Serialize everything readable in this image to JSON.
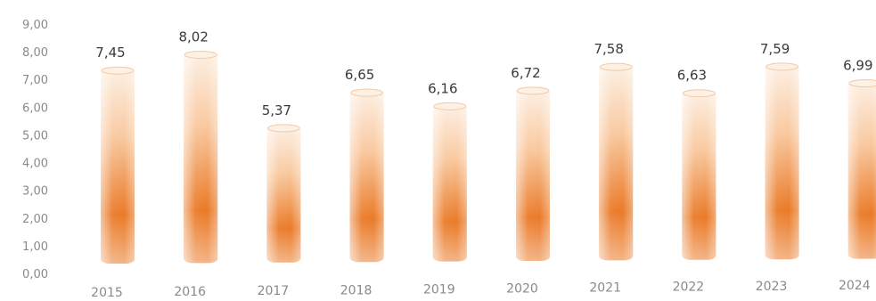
{
  "chart_data": {
    "type": "bar",
    "categories": [
      "2015",
      "2016",
      "2017",
      "2018",
      "2019",
      "2020",
      "2021",
      "2022",
      "2023",
      "2024"
    ],
    "values": [
      7.45,
      8.02,
      5.37,
      6.65,
      6.16,
      6.72,
      7.58,
      6.63,
      7.59,
      6.99
    ],
    "value_labels": [
      "7,45",
      "8,02",
      "5,37",
      "6,65",
      "6,16",
      "6,72",
      "7,58",
      "6,63",
      "7,59",
      "6,99"
    ],
    "yticks": [
      "0,00",
      "1,00",
      "2,00",
      "3,00",
      "4,00",
      "5,00",
      "6,00",
      "7,00",
      "8,00",
      "9,00"
    ],
    "ylim": [
      0,
      9
    ],
    "grid": false,
    "legend": "none",
    "colors": {
      "bar_top": "#fdf0e4",
      "bar_mid": "#f6b27c",
      "bar_low": "#e8731f",
      "bar_edge": "#f4c9a4"
    }
  }
}
